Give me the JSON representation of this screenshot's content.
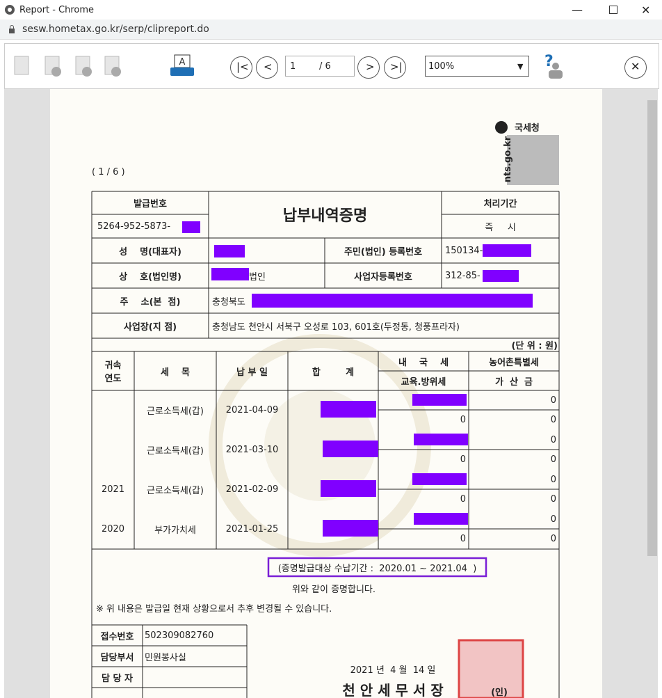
{
  "window": {
    "title": "Report - Chrome",
    "url": "sesw.hometax.go.kr/serp/clipreport.do"
  },
  "toolbar": {
    "page": "1",
    "total": "/ 6",
    "zoom": "100%"
  },
  "document": {
    "agency": "국세청",
    "domain": "nts.go.kr",
    "page_indicator": "( 1 / 6 )",
    "title": "납부내역증명",
    "header": {
      "issue_no_label": "발급번호",
      "issue_no": "5264-952-5873-",
      "period_label": "처리기간",
      "period": "즉     시"
    },
    "info": {
      "name_label": "성    명(대표자)",
      "reg_no_label": "주민(법인) 등록번호",
      "reg_no": "150134-",
      "company_label": "상    호(법인명)",
      "company_suffix": "법인",
      "biz_no_label": "사업자등록번호",
      "biz_no": "312-85-",
      "address_label": "주    소(본  점)",
      "address": "충청북도",
      "site_label": "사업장(지 점)",
      "site": "충청남도 천안시 서북구 오성로 103, 601호(두정동, 청풍프라자)"
    },
    "unit": "(단 위 : 원)",
    "columns": {
      "year": "귀속\n연도",
      "item": "세    목",
      "date": "납 부 일",
      "total": "합        계",
      "national_tax": "내    국    세",
      "education_tax": "교육.방위세",
      "rural_tax": "농어촌특별세",
      "penalty": "가  산  금"
    },
    "rows": [
      {
        "item": "근로소득세(갑)",
        "date": "2021-04-09",
        "education_tax": 0,
        "rural_tax": 0,
        "penalty": 0
      },
      {
        "item": "근로소득세(갑)",
        "date": "2021-03-10",
        "education_tax": 0,
        "rural_tax": 0,
        "penalty": 0
      },
      {
        "year": "2021",
        "item": "근로소득세(갑)",
        "date": "2021-02-09",
        "education_tax": 0,
        "rural_tax": 0,
        "penalty": 0
      },
      {
        "year": "2020",
        "item": "부가가치세",
        "date": "2021-01-25",
        "education_tax": 0,
        "rural_tax": 0,
        "penalty": 0
      }
    ],
    "period_note": "(증명발급대상 수납기간 :  2020.01 ~ 2021.04  )",
    "certify": "위와 같이 증명합니다.",
    "notice": "※ 위 내용은 발급일 현재 상황으로서 추후 변경될 수 있습니다.",
    "receipt": {
      "receipt_no_label": "접수번호",
      "receipt_no": "502309082760",
      "dept_label": "담당부서",
      "dept": "민원봉사실",
      "staff_label": "담 당 자"
    },
    "date": "2021 년  4 월  14 일",
    "issuer": "천 안 세 무 서 장",
    "seal": "(인)"
  }
}
